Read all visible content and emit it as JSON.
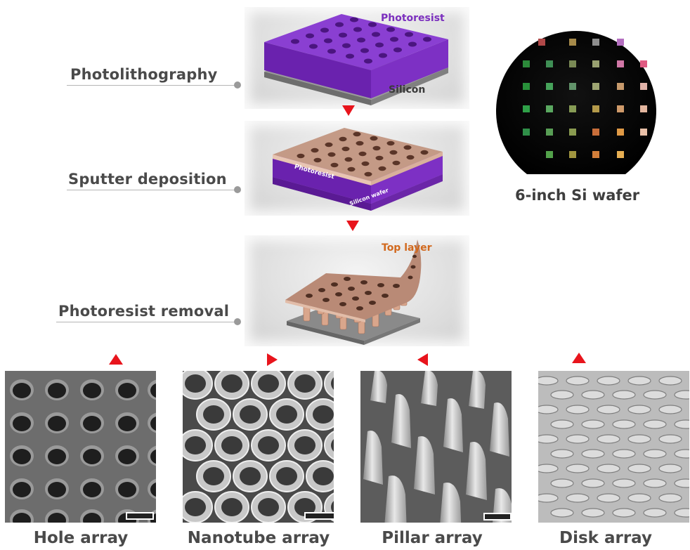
{
  "steps": {
    "photolithography": "Photolithography",
    "sputter_deposition": "Sputter deposition",
    "photoresist_removal": "Photoresist removal"
  },
  "panels": {
    "panel1": {
      "photoresist": "Photoresist",
      "silicon": "Silicon"
    },
    "panel2": {
      "photoresist": "Photoresist",
      "silicon_wafer": "Silicon wafer"
    },
    "panel3": {
      "top_layer": "Top layer"
    }
  },
  "wafer": {
    "caption": "6-inch Si wafer"
  },
  "sem_images": [
    {
      "caption": "Hole array"
    },
    {
      "caption": "Nanotube array"
    },
    {
      "caption": "Pillar array"
    },
    {
      "caption": "Disk array"
    }
  ],
  "colors": {
    "photoresist": "#7b2fbe",
    "top_layer_text": "#d2691e",
    "arrow": "#e8141c",
    "silicon": "#8a8a8a",
    "copper": "#c49a86"
  }
}
